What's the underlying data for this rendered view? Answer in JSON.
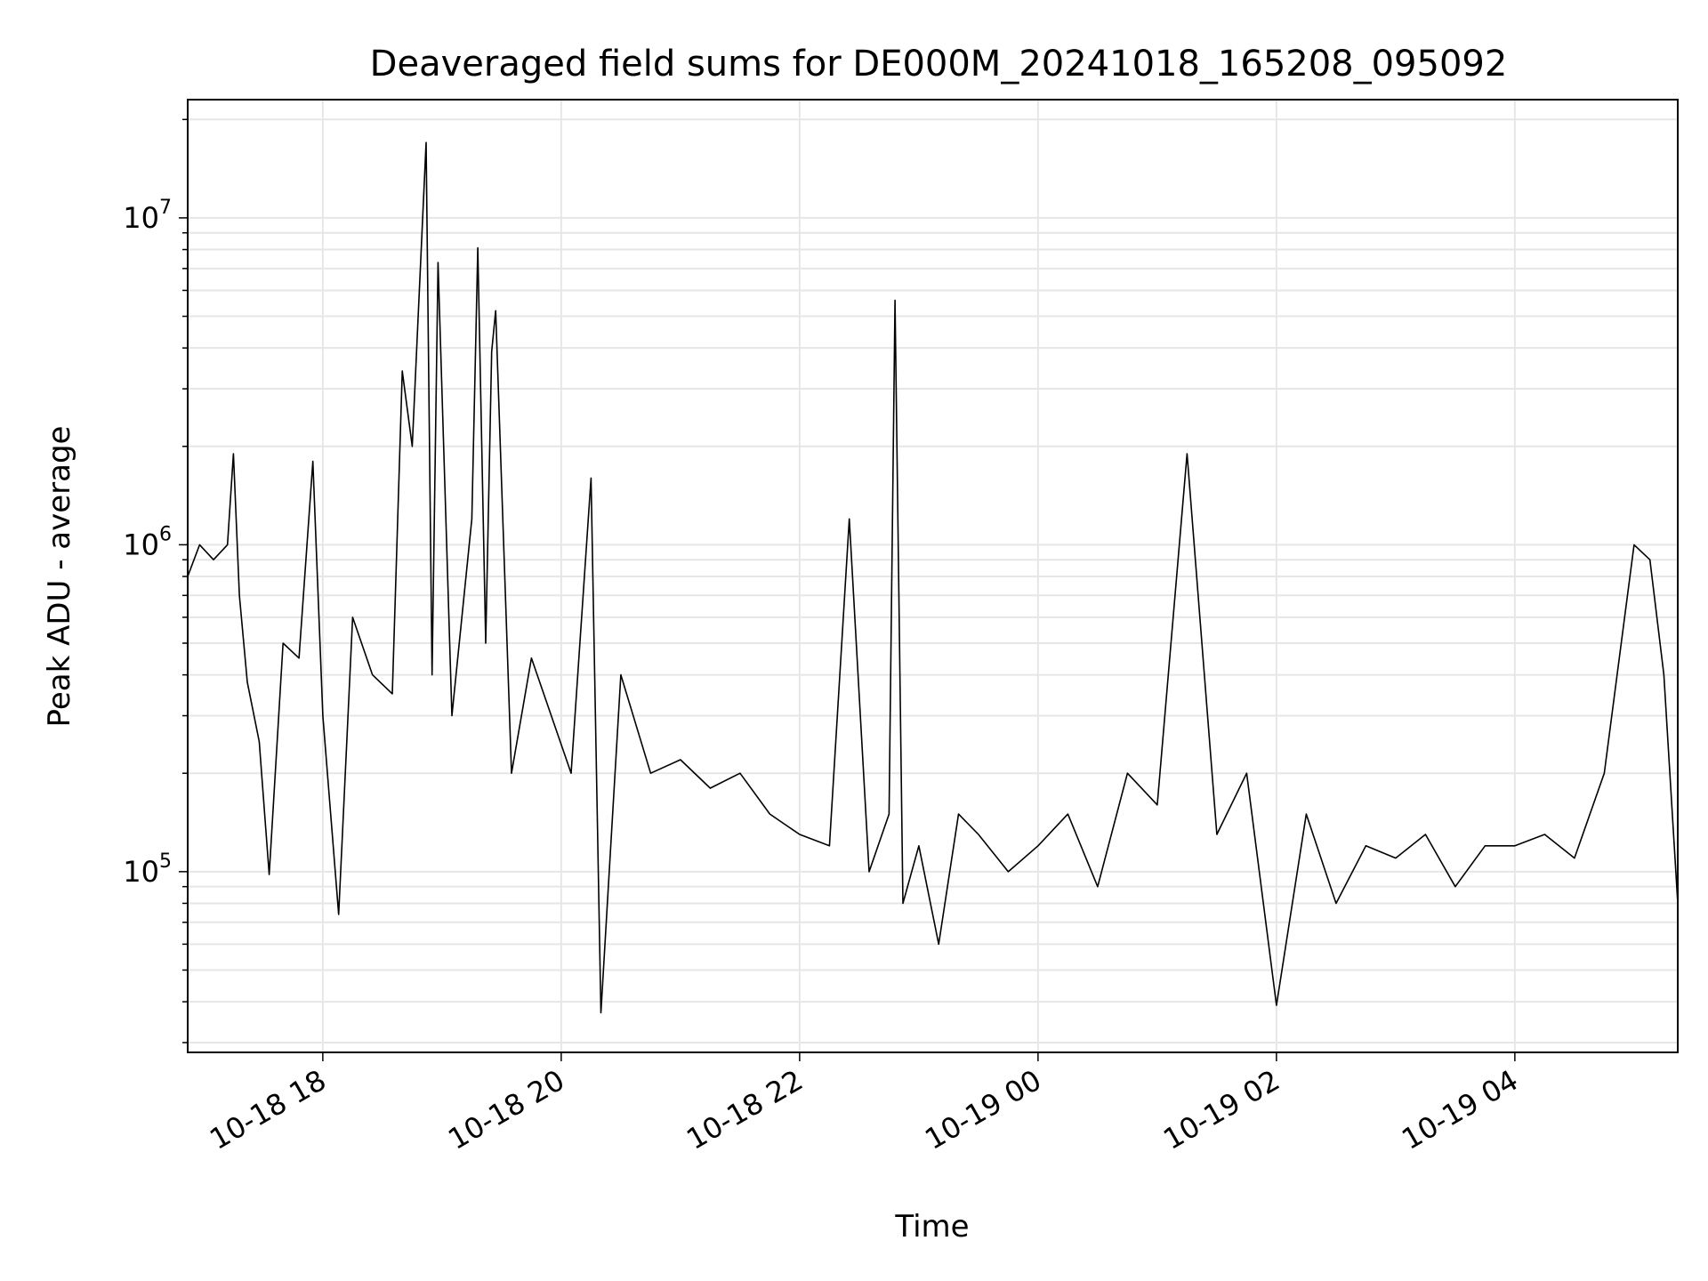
{
  "chart_data": {
    "type": "line",
    "title": "Deaveraged field sums for DE000M_20241018_165208_095092",
    "xlabel": "Time",
    "ylabel": "Peak ADU - average",
    "yscale": "log",
    "xlim": [
      "2024-10-18 16:52",
      "2024-10-19 05:22"
    ],
    "ylim": [
      28000,
      23000000
    ],
    "grid": true,
    "x_ticks": [
      {
        "label": "10-18 18",
        "time": "2024-10-18 18:00"
      },
      {
        "label": "10-18 20",
        "time": "2024-10-18 20:00"
      },
      {
        "label": "10-18 22",
        "time": "2024-10-18 22:00"
      },
      {
        "label": "10-19 00",
        "time": "2024-10-19 00:00"
      },
      {
        "label": "10-19 02",
        "time": "2024-10-19 02:00"
      },
      {
        "label": "10-19 04",
        "time": "2024-10-19 04:00"
      }
    ],
    "y_ticks": [
      {
        "base": "10",
        "exp": "5",
        "value": 100000
      },
      {
        "base": "10",
        "exp": "6",
        "value": 1000000
      },
      {
        "base": "10",
        "exp": "7",
        "value": 10000000
      }
    ],
    "series": [
      {
        "color": "#000000",
        "points": [
          [
            "2024-10-18 16:52",
            800000
          ],
          [
            "2024-10-18 16:58",
            1000000
          ],
          [
            "2024-10-18 17:05",
            900000
          ],
          [
            "2024-10-18 17:12",
            1000000
          ],
          [
            "2024-10-18 17:15",
            1900000
          ],
          [
            "2024-10-18 17:18",
            700000
          ],
          [
            "2024-10-18 17:22",
            380000
          ],
          [
            "2024-10-18 17:28",
            250000
          ],
          [
            "2024-10-18 17:33",
            98000
          ],
          [
            "2024-10-18 17:40",
            500000
          ],
          [
            "2024-10-18 17:48",
            450000
          ],
          [
            "2024-10-18 17:55",
            1800000
          ],
          [
            "2024-10-18 18:00",
            300000
          ],
          [
            "2024-10-18 18:08",
            74000
          ],
          [
            "2024-10-18 18:15",
            600000
          ],
          [
            "2024-10-18 18:25",
            400000
          ],
          [
            "2024-10-18 18:35",
            350000
          ],
          [
            "2024-10-18 18:40",
            3400000
          ],
          [
            "2024-10-18 18:45",
            2000000
          ],
          [
            "2024-10-18 18:52",
            17000000
          ],
          [
            "2024-10-18 18:55",
            400000
          ],
          [
            "2024-10-18 18:58",
            7300000
          ],
          [
            "2024-10-18 19:05",
            300000
          ],
          [
            "2024-10-18 19:15",
            1200000
          ],
          [
            "2024-10-18 19:18",
            8100000
          ],
          [
            "2024-10-18 19:22",
            500000
          ],
          [
            "2024-10-18 19:25",
            3900000
          ],
          [
            "2024-10-18 19:27",
            5200000
          ],
          [
            "2024-10-18 19:35",
            200000
          ],
          [
            "2024-10-18 19:45",
            450000
          ],
          [
            "2024-10-18 19:55",
            300000
          ],
          [
            "2024-10-18 20:05",
            200000
          ],
          [
            "2024-10-18 20:15",
            1600000
          ],
          [
            "2024-10-18 20:20",
            37000
          ],
          [
            "2024-10-18 20:30",
            400000
          ],
          [
            "2024-10-18 20:45",
            200000
          ],
          [
            "2024-10-18 21:00",
            220000
          ],
          [
            "2024-10-18 21:15",
            180000
          ],
          [
            "2024-10-18 21:30",
            200000
          ],
          [
            "2024-10-18 21:45",
            150000
          ],
          [
            "2024-10-18 22:00",
            130000
          ],
          [
            "2024-10-18 22:15",
            120000
          ],
          [
            "2024-10-18 22:25",
            1200000
          ],
          [
            "2024-10-18 22:35",
            100000
          ],
          [
            "2024-10-18 22:45",
            150000
          ],
          [
            "2024-10-18 22:48",
            5600000
          ],
          [
            "2024-10-18 22:52",
            80000
          ],
          [
            "2024-10-18 23:00",
            120000
          ],
          [
            "2024-10-18 23:10",
            60000
          ],
          [
            "2024-10-18 23:20",
            150000
          ],
          [
            "2024-10-18 23:30",
            130000
          ],
          [
            "2024-10-18 23:45",
            100000
          ],
          [
            "2024-10-19 00:00",
            120000
          ],
          [
            "2024-10-19 00:15",
            150000
          ],
          [
            "2024-10-19 00:30",
            90000
          ],
          [
            "2024-10-19 00:45",
            200000
          ],
          [
            "2024-10-19 01:00",
            160000
          ],
          [
            "2024-10-19 01:15",
            1900000
          ],
          [
            "2024-10-19 01:30",
            130000
          ],
          [
            "2024-10-19 01:45",
            200000
          ],
          [
            "2024-10-19 02:00",
            39000
          ],
          [
            "2024-10-19 02:15",
            150000
          ],
          [
            "2024-10-19 02:30",
            80000
          ],
          [
            "2024-10-19 02:45",
            120000
          ],
          [
            "2024-10-19 03:00",
            110000
          ],
          [
            "2024-10-19 03:15",
            130000
          ],
          [
            "2024-10-19 03:30",
            90000
          ],
          [
            "2024-10-19 03:45",
            120000
          ],
          [
            "2024-10-19 04:00",
            120000
          ],
          [
            "2024-10-19 04:15",
            130000
          ],
          [
            "2024-10-19 04:30",
            110000
          ],
          [
            "2024-10-19 04:45",
            200000
          ],
          [
            "2024-10-19 05:00",
            1000000
          ],
          [
            "2024-10-19 05:08",
            900000
          ],
          [
            "2024-10-19 05:15",
            400000
          ],
          [
            "2024-10-19 05:22",
            80000
          ]
        ]
      }
    ]
  }
}
